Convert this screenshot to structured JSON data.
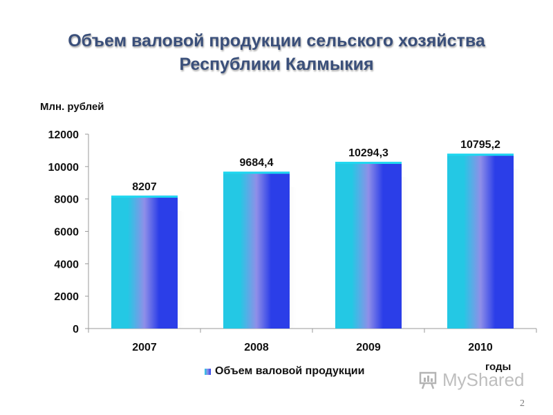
{
  "title_line1": "Объем валовой продукции сельского хозяйства",
  "title_line2": "Республики Калмыкия",
  "page_number": "2",
  "watermark": {
    "text": "MyShared",
    "icon": "presentation-board-icon"
  },
  "colors": {
    "title": "#3a4f7a",
    "bar_light": "#24c8e4",
    "bar_mid": "#8f8fe8",
    "bar_dark": "#2b3ee8",
    "bar_top": "#1fd8f0",
    "axis": "#9a9a9a"
  },
  "chart_data": {
    "type": "bar",
    "title": "",
    "ylabel": "Млн. рублей",
    "xlabel": "годы",
    "categories": [
      "2007",
      "2008",
      "2009",
      "2010"
    ],
    "series": [
      {
        "name": "Объем валовой продукции",
        "values": [
          8207,
          9684.4,
          10294.3,
          10795.2
        ]
      }
    ],
    "value_labels": [
      "8207",
      "9684,4",
      "10294,3",
      "10795,2"
    ],
    "ylim": [
      0,
      12000
    ],
    "yticks": [
      0,
      2000,
      4000,
      6000,
      8000,
      10000,
      12000
    ],
    "grid": false,
    "legend_position": "bottom"
  }
}
